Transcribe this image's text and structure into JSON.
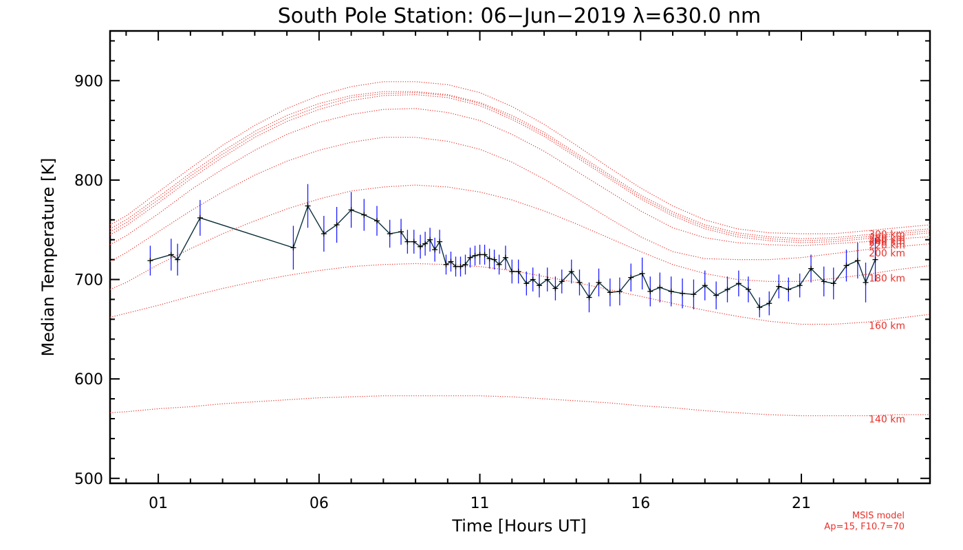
{
  "chart_data": {
    "type": "line",
    "title": "South Pole Station: 06−Jun−2019 λ=630.0 nm",
    "xlabel": "Time [Hours UT]",
    "ylabel": "Median Temperature [K]",
    "xlim": [
      -0.5,
      25.0
    ],
    "ylim": [
      495,
      950
    ],
    "x_ticks": [
      1,
      6,
      11,
      16,
      21
    ],
    "x_tick_labels": [
      "01",
      "06",
      "11",
      "16",
      "21"
    ],
    "y_ticks": [
      500,
      600,
      700,
      800,
      900
    ],
    "y_tick_labels": [
      "500",
      "600",
      "700",
      "800",
      "900"
    ],
    "colors": {
      "measurement": "#000000",
      "error_bar": "#1a1aff",
      "model": "#e8302a"
    },
    "measurements": {
      "name": "Median Temperature",
      "x": [
        0.75,
        1.4,
        1.6,
        2.3,
        5.2,
        5.65,
        6.15,
        6.55,
        7.0,
        7.4,
        7.8,
        8.2,
        8.55,
        8.75,
        8.95,
        9.15,
        9.3,
        9.45,
        9.6,
        9.75,
        9.95,
        10.1,
        10.25,
        10.4,
        10.55,
        10.7,
        10.85,
        11.0,
        11.15,
        11.3,
        11.45,
        11.6,
        11.8,
        12.0,
        12.2,
        12.45,
        12.65,
        12.85,
        13.1,
        13.35,
        13.55,
        13.85,
        14.1,
        14.4,
        14.7,
        15.05,
        15.35,
        15.7,
        16.05,
        16.3,
        16.6,
        16.95,
        17.3,
        17.65,
        18.0,
        18.35,
        18.7,
        19.05,
        19.35,
        19.7,
        20.0,
        20.3,
        20.6,
        20.95,
        21.3,
        21.7,
        22.0,
        22.4,
        22.75,
        23.0,
        23.3
      ],
      "y": [
        719,
        725,
        720,
        762,
        732,
        774,
        746,
        755,
        770,
        765,
        759,
        746,
        748,
        738,
        738,
        733,
        736,
        740,
        730,
        738,
        715,
        718,
        713,
        713,
        715,
        722,
        724,
        725,
        725,
        721,
        720,
        715,
        722,
        708,
        708,
        696,
        700,
        694,
        700,
        691,
        698,
        708,
        697,
        682,
        697,
        687,
        688,
        702,
        706,
        688,
        692,
        688,
        686,
        685,
        694,
        684,
        690,
        696,
        690,
        672,
        676,
        693,
        690,
        694,
        711,
        698,
        696,
        714,
        719,
        697,
        720
      ],
      "y_err": [
        15,
        16,
        16,
        18,
        22,
        22,
        18,
        18,
        18,
        16,
        15,
        14,
        13,
        12,
        12,
        12,
        12,
        12,
        12,
        12,
        10,
        10,
        10,
        10,
        10,
        10,
        10,
        10,
        10,
        10,
        10,
        10,
        12,
        12,
        12,
        12,
        12,
        12,
        12,
        12,
        12,
        12,
        13,
        15,
        14,
        14,
        14,
        14,
        16,
        15,
        15,
        15,
        15,
        15,
        15,
        14,
        13,
        13,
        13,
        10,
        12,
        12,
        12,
        12,
        14,
        15,
        16,
        16,
        18,
        20,
        22
      ]
    },
    "model": {
      "name": "MSIS model",
      "x": [
        -0.5,
        0,
        1,
        2,
        3,
        4,
        5,
        6,
        7,
        8,
        9,
        10,
        11,
        12,
        13,
        14,
        15,
        16,
        17,
        18,
        19,
        20,
        21,
        22,
        23,
        24,
        25
      ],
      "series": [
        {
          "name": "140 km",
          "values": [
            566,
            567,
            570,
            572,
            575,
            577,
            579,
            581,
            582,
            583,
            583,
            583,
            583,
            582,
            580,
            578,
            576,
            573,
            571,
            568,
            566,
            564,
            563,
            563,
            563,
            564,
            564
          ]
        },
        {
          "name": "160 km",
          "values": [
            662,
            666,
            674,
            683,
            691,
            698,
            704,
            709,
            713,
            715,
            716,
            715,
            713,
            709,
            703,
            697,
            690,
            683,
            676,
            669,
            663,
            658,
            655,
            655,
            657,
            661,
            665
          ]
        },
        {
          "name": "180 km",
          "values": [
            690,
            697,
            715,
            731,
            746,
            759,
            771,
            781,
            789,
            793,
            795,
            793,
            788,
            780,
            769,
            756,
            742,
            728,
            715,
            706,
            700,
            698,
            698,
            701,
            705,
            710,
            714
          ]
        },
        {
          "name": "200 km",
          "values": [
            718,
            727,
            748,
            769,
            788,
            805,
            819,
            830,
            838,
            843,
            843,
            839,
            831,
            818,
            801,
            782,
            762,
            743,
            728,
            721,
            720,
            720,
            722,
            726,
            730,
            733,
            736
          ]
        },
        {
          "name": "220 km",
          "values": [
            735,
            744,
            766,
            790,
            811,
            830,
            846,
            858,
            866,
            871,
            872,
            868,
            860,
            846,
            829,
            809,
            789,
            769,
            752,
            742,
            737,
            735,
            734,
            736,
            738,
            741,
            743
          ]
        },
        {
          "name": "240 km",
          "values": [
            745,
            754,
            777,
            801,
            823,
            843,
            859,
            871,
            880,
            885,
            886,
            883,
            875,
            861,
            844,
            823,
            802,
            781,
            764,
            751,
            743,
            739,
            737,
            738,
            741,
            744,
            747
          ]
        },
        {
          "name": "260 km",
          "values": [
            748,
            757,
            780,
            804,
            826,
            846,
            862,
            874,
            883,
            887,
            888,
            885,
            877,
            863,
            846,
            825,
            804,
            783,
            766,
            753,
            745,
            741,
            739,
            740,
            743,
            746,
            749
          ]
        },
        {
          "name": "280 km",
          "values": [
            751,
            760,
            783,
            807,
            829,
            849,
            865,
            877,
            885,
            889,
            889,
            886,
            878,
            865,
            848,
            827,
            806,
            785,
            768,
            755,
            747,
            743,
            741,
            742,
            745,
            748,
            751
          ]
        },
        {
          "name": "300 km",
          "values": [
            755,
            764,
            788,
            812,
            835,
            855,
            872,
            885,
            894,
            899,
            899,
            896,
            888,
            874,
            856,
            835,
            813,
            792,
            774,
            760,
            751,
            747,
            746,
            746,
            749,
            752,
            755
          ]
        }
      ]
    },
    "altitude_labels": [
      "300 km",
      "280 km",
      "260 km",
      "240 km",
      "220 km",
      "200 km",
      "180 km",
      "160 km",
      "140 km"
    ],
    "annotation": [
      "MSIS model",
      "Ap=15, F10.7=70"
    ]
  }
}
